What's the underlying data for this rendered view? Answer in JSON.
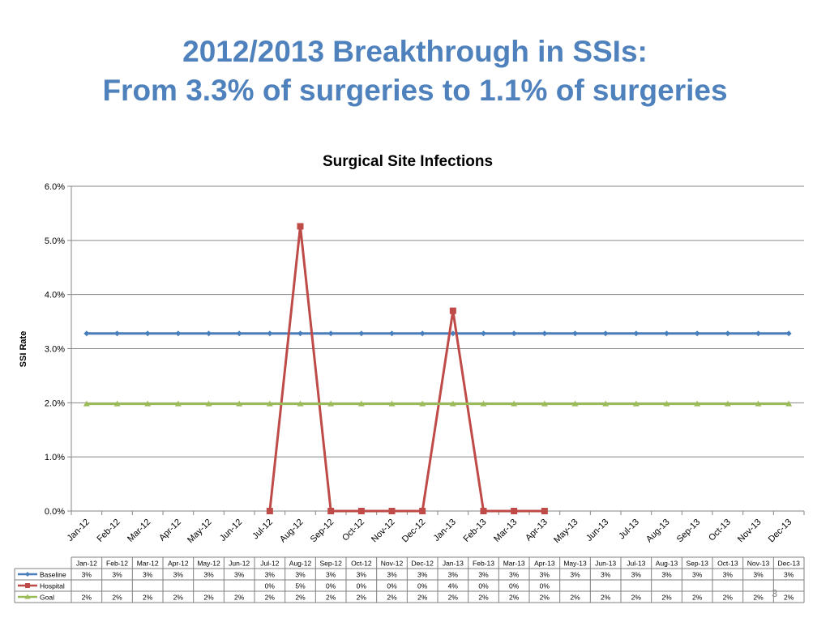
{
  "slide": {
    "title_line1": "2012/2013 Breakthrough in SSIs:",
    "title_line2": "From 3.3% of surgeries to 1.1% of surgeries",
    "page_number": "3"
  },
  "chart_data": {
    "type": "line",
    "title": "Surgical Site Infections",
    "xlabel": "",
    "ylabel": "SSI Rate",
    "ylim": [
      0,
      6
    ],
    "y_ticks": [
      "0.0%",
      "1.0%",
      "2.0%",
      "3.0%",
      "4.0%",
      "5.0%",
      "6.0%"
    ],
    "grid": "horizontal",
    "categories": [
      "Jan-12",
      "Feb-12",
      "Mar-12",
      "Apr-12",
      "May-12",
      "Jun-12",
      "Jul-12",
      "Aug-12",
      "Sep-12",
      "Oct-12",
      "Nov-12",
      "Dec-12",
      "Jan-13",
      "Feb-13",
      "Mar-13",
      "Apr-13",
      "May-13",
      "Jun-13",
      "Jul-13",
      "Aug-13",
      "Sep-13",
      "Oct-13",
      "Nov-13",
      "Dec-13"
    ],
    "series": [
      {
        "name": "Baseline",
        "color": "#4a7ebb",
        "marker": "diamond",
        "values": [
          3.28,
          3.28,
          3.28,
          3.28,
          3.28,
          3.28,
          3.28,
          3.28,
          3.28,
          3.28,
          3.28,
          3.28,
          3.28,
          3.28,
          3.28,
          3.28,
          3.28,
          3.28,
          3.28,
          3.28,
          3.28,
          3.28,
          3.28,
          3.28
        ],
        "table_labels": [
          "3%",
          "3%",
          "3%",
          "3%",
          "3%",
          "3%",
          "3%",
          "3%",
          "3%",
          "3%",
          "3%",
          "3%",
          "3%",
          "3%",
          "3%",
          "3%",
          "3%",
          "3%",
          "3%",
          "3%",
          "3%",
          "3%",
          "3%",
          "3%"
        ]
      },
      {
        "name": "Hospital",
        "color": "#be4b48",
        "marker": "square",
        "values": [
          null,
          null,
          null,
          null,
          null,
          null,
          0,
          5.26,
          0,
          0,
          0,
          0,
          3.7,
          0,
          0,
          0,
          null,
          null,
          null,
          null,
          null,
          null,
          null,
          null
        ],
        "table_labels": [
          "",
          "",
          "",
          "",
          "",
          "",
          "0%",
          "5%",
          "0%",
          "0%",
          "0%",
          "0%",
          "4%",
          "0%",
          "0%",
          "0%",
          "",
          "",
          "",
          "",
          "",
          "",
          "",
          ""
        ]
      },
      {
        "name": "Goal",
        "color": "#9bbb59",
        "marker": "triangle",
        "values": [
          1.98,
          1.98,
          1.98,
          1.98,
          1.98,
          1.98,
          1.98,
          1.98,
          1.98,
          1.98,
          1.98,
          1.98,
          1.98,
          1.98,
          1.98,
          1.98,
          1.98,
          1.98,
          1.98,
          1.98,
          1.98,
          1.98,
          1.98,
          1.98
        ],
        "table_labels": [
          "2%",
          "2%",
          "2%",
          "2%",
          "2%",
          "2%",
          "2%",
          "2%",
          "2%",
          "2%",
          "2%",
          "2%",
          "2%",
          "2%",
          "2%",
          "2%",
          "2%",
          "2%",
          "2%",
          "2%",
          "2%",
          "2%",
          "2%",
          "2%"
        ]
      }
    ],
    "data_table": true
  }
}
